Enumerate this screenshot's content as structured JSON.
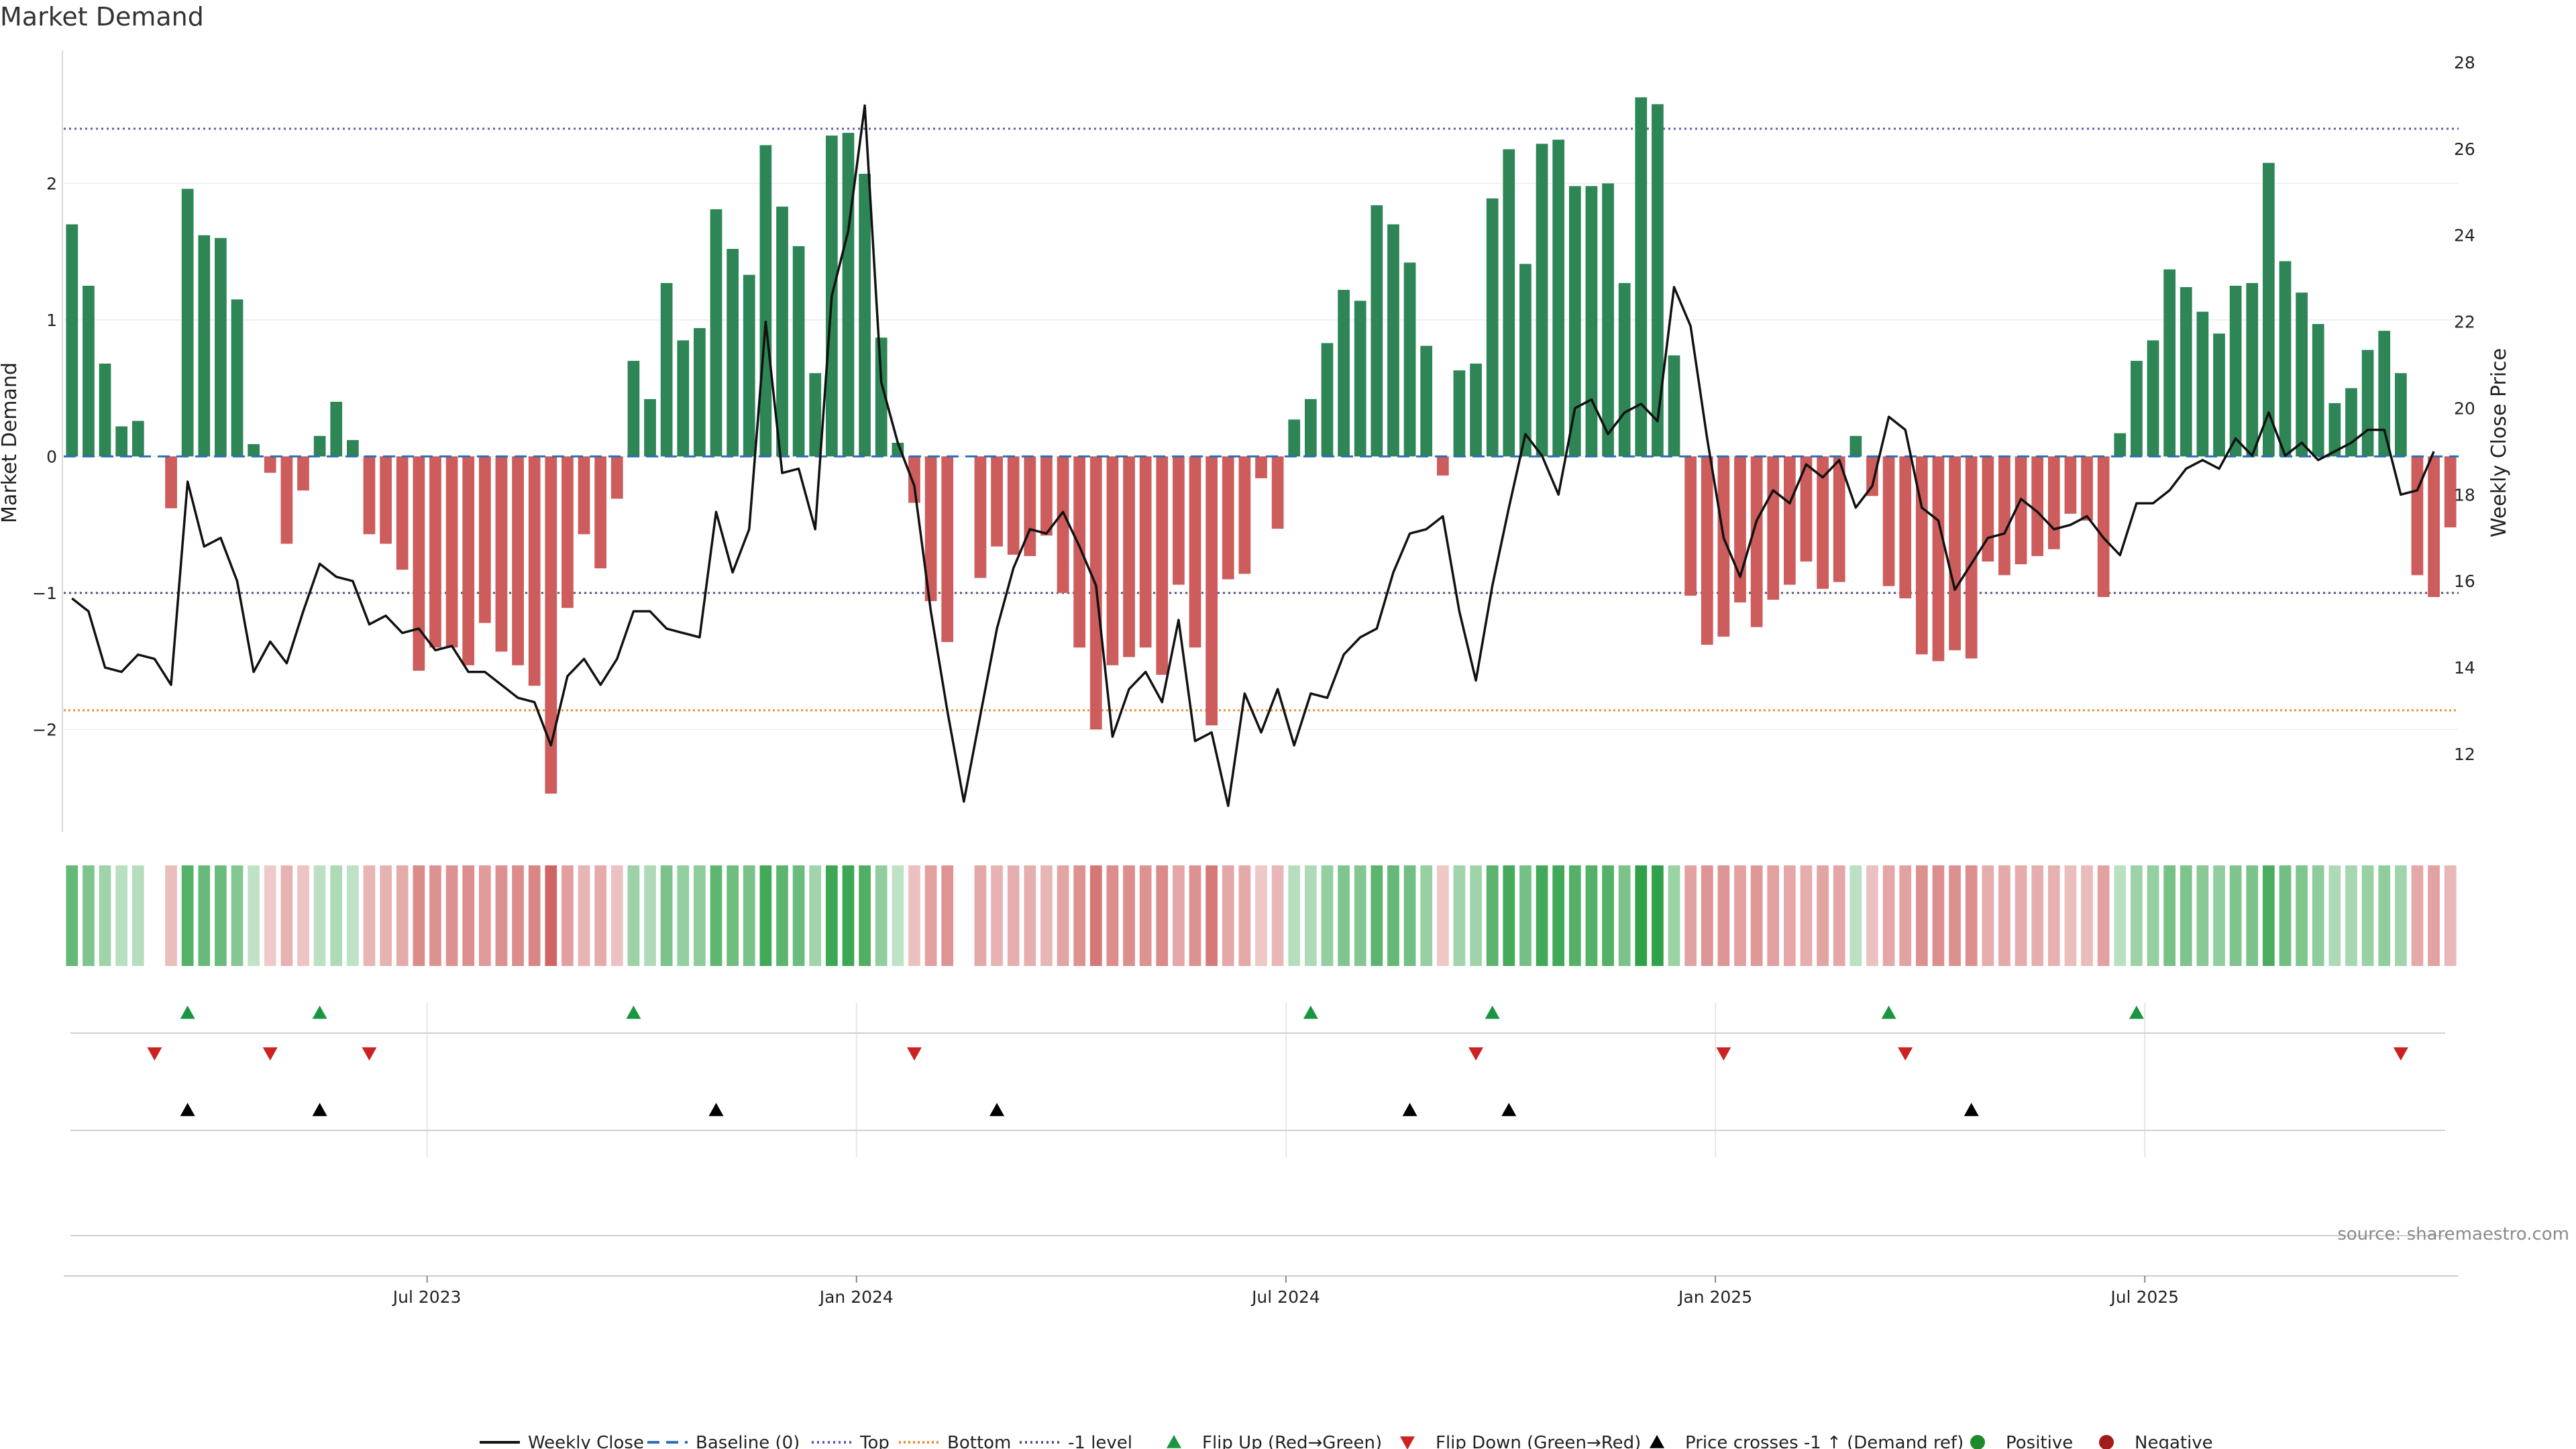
{
  "chart_data": {
    "type": "bar",
    "title": "Market Demand",
    "ylabel": "Market Demand",
    "y2label": "Weekly Close Price",
    "ylim": [
      -2.75,
      2.95
    ],
    "y2lim": [
      10.2,
      28.2
    ],
    "yticks": [
      -2,
      -1,
      0,
      1,
      2
    ],
    "yticks_labels": [
      "−2",
      "−1",
      "0",
      "1",
      "2"
    ],
    "y2ticks": [
      12,
      14,
      16,
      18,
      20,
      22,
      24,
      26,
      28
    ],
    "reference_lines": {
      "baseline": 0,
      "top": 2.4,
      "bottom": -1.86,
      "minus_one": -1
    },
    "x_ticks": [
      "Jul 2023",
      "Jan 2024",
      "Jul 2024",
      "Jan 2025",
      "Jul 2025"
    ],
    "x_tick_weeks": [
      22,
      48,
      74,
      100,
      126
    ],
    "demand": [
      1.7,
      1.25,
      0.68,
      0.22,
      0.26,
      0,
      -0.38,
      1.96,
      1.62,
      1.6,
      1.15,
      0.09,
      -0.12,
      -0.64,
      -0.25,
      0.15,
      0.4,
      0.12,
      -0.57,
      -0.64,
      -0.83,
      -1.57,
      -1.4,
      -1.4,
      -1.53,
      -1.22,
      -1.43,
      -1.53,
      -1.68,
      -2.47,
      -1.11,
      -0.57,
      -0.82,
      -0.31,
      0.7,
      0.42,
      1.27,
      0.85,
      0.94,
      1.81,
      1.52,
      1.33,
      2.28,
      1.83,
      1.54,
      0.61,
      2.35,
      2.37,
      2.07,
      0.87,
      0.1,
      -0.34,
      -1.06,
      -1.36,
      0,
      -0.89,
      -0.66,
      -0.72,
      -0.73,
      -0.58,
      -1.0,
      -1.4,
      -2.0,
      -1.53,
      -1.47,
      -1.4,
      -1.6,
      -0.94,
      -1.4,
      -1.97,
      -0.9,
      -0.86,
      -0.16,
      -0.53,
      0.27,
      0.42,
      0.83,
      1.22,
      1.14,
      1.84,
      1.7,
      1.42,
      0.81,
      -0.14,
      0.63,
      0.68,
      1.89,
      2.25,
      1.41,
      2.29,
      2.32,
      1.98,
      1.98,
      2.0,
      1.27,
      2.63,
      2.58,
      0.74,
      -1.02,
      -1.38,
      -1.32,
      -1.07,
      -1.25,
      -1.05,
      -0.94,
      -0.77,
      -0.97,
      -0.92,
      0.15,
      -0.29,
      -0.95,
      -1.04,
      -1.45,
      -1.5,
      -1.42,
      -1.48,
      -0.77,
      -0.87,
      -0.79,
      -0.73,
      -0.68,
      -0.42,
      -0.47,
      -1.03,
      0.17,
      0.7,
      0.85,
      1.37,
      1.24,
      1.06,
      0.9,
      1.25,
      1.27,
      2.15,
      1.43,
      1.2,
      0.97,
      0.39,
      0.5,
      0.78,
      0.92,
      0.61,
      -0.87,
      -1.03,
      -0.52
    ],
    "weekly_close": [
      15.6,
      15.3,
      14.0,
      13.9,
      14.3,
      14.2,
      13.6,
      18.3,
      16.8,
      17.0,
      16.0,
      13.9,
      14.6,
      14.1,
      15.3,
      16.4,
      16.1,
      16.0,
      15.0,
      15.2,
      14.8,
      14.9,
      14.4,
      14.5,
      13.9,
      13.9,
      13.6,
      13.3,
      13.2,
      12.2,
      13.8,
      14.2,
      13.6,
      14.2,
      15.3,
      15.3,
      14.9,
      14.8,
      14.7,
      17.6,
      16.2,
      17.2,
      22.0,
      18.5,
      18.6,
      17.2,
      22.6,
      24.1,
      27.0,
      20.6,
      19.2,
      18.2,
      15.3,
      13.0,
      10.9,
      12.9,
      14.9,
      16.3,
      17.2,
      17.1,
      17.6,
      16.8,
      15.9,
      12.4,
      13.5,
      13.9,
      13.2,
      15.1,
      12.3,
      12.5,
      10.8,
      13.4,
      12.5,
      13.5,
      12.2,
      13.4,
      13.3,
      14.3,
      14.7,
      14.9,
      16.2,
      17.1,
      17.2,
      17.5,
      15.3,
      13.7,
      15.9,
      17.7,
      19.4,
      18.9,
      18.0,
      20.0,
      20.2,
      19.4,
      19.9,
      20.1,
      19.7,
      22.8,
      21.9,
      19.3,
      17.0,
      16.1,
      17.4,
      18.1,
      17.8,
      18.7,
      18.4,
      18.8,
      17.7,
      18.2,
      19.8,
      19.5,
      17.7,
      17.4,
      15.8,
      16.4,
      17.0,
      17.1,
      17.9,
      17.6,
      17.2,
      17.3,
      17.5,
      17.0,
      16.6,
      17.8,
      17.8,
      18.1,
      18.6,
      18.8,
      18.6,
      19.3,
      18.9,
      19.9,
      18.9,
      19.2,
      18.8,
      19.0,
      19.2,
      19.5,
      19.5,
      18.0,
      18.1,
      19.0
    ],
    "flip_up_weeks": [
      7,
      15,
      34,
      75,
      86,
      110,
      125
    ],
    "flip_down_weeks": [
      5,
      12,
      18,
      51,
      85,
      100,
      111,
      141
    ],
    "price_cross_weeks": [
      7,
      15,
      39,
      56,
      81,
      87,
      115
    ],
    "legend": [
      {
        "key": "weekly_close",
        "label": "Weekly Close"
      },
      {
        "key": "baseline",
        "label": "Baseline (0)"
      },
      {
        "key": "top",
        "label": "Top"
      },
      {
        "key": "bottom",
        "label": "Bottom"
      },
      {
        "key": "minus_one",
        "label": "-1 level"
      },
      {
        "key": "flip_up",
        "label": "Flip Up (Red→Green)"
      },
      {
        "key": "flip_down",
        "label": "Flip Down (Green→Red)"
      },
      {
        "key": "price_cross",
        "label": "Price crosses -1 ↑ (Demand ref)"
      },
      {
        "key": "positive",
        "label": "Positive"
      },
      {
        "key": "negative",
        "label": "Negative"
      }
    ],
    "source": "source: sharemaestro.com"
  },
  "colors": {
    "positive_bar": "#2e8556",
    "negative_bar": "#cd5c5c",
    "close_line": "#111111",
    "baseline": "#2f6fb5",
    "top": "#5b5bb8",
    "bottom": "#e8912d",
    "minus_one": "#555577",
    "flip_up": "#1a9641",
    "flip_down": "#cc2222",
    "price_cross": "#000000",
    "positive_dot": "#1f8a2a",
    "negative_dot": "#a11c1c"
  }
}
